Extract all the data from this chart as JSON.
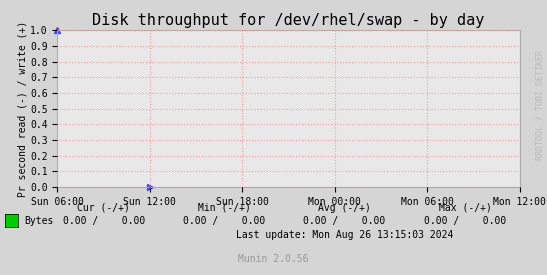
{
  "title": "Disk throughput for /dev/rhel/swap - by day",
  "ylabel": "Pr second read (-) / write (+)",
  "background_color": "#d5d5d5",
  "plot_bg_color": "#e8e8e8",
  "grid_color": "#ff9999",
  "ylim": [
    0.0,
    1.0
  ],
  "yticks": [
    0.0,
    0.1,
    0.2,
    0.3,
    0.4,
    0.5,
    0.6,
    0.7,
    0.8,
    0.9,
    1.0
  ],
  "xtick_labels": [
    "Sun 06:00",
    "Sun 12:00",
    "Sun 18:00",
    "Mon 00:00",
    "Mon 06:00",
    "Mon 12:00"
  ],
  "legend_label": "Bytes",
  "legend_color": "#00cc00",
  "cur_label": "Cur (-/+)",
  "cur_val": "0.00 /    0.00",
  "min_label": "Min (-/+)",
  "min_val": "0.00 /    0.00",
  "avg_label": "Avg (-/+)",
  "avg_val": "0.00 /    0.00",
  "max_label": "Max (-/+)",
  "max_val": "0.00 /    0.00",
  "last_update": "Last update: Mon Aug 26 13:15:03 2024",
  "munin_version": "Munin 2.0.56",
  "watermark": "RRDTOOL / TOBI OETIKER",
  "title_fontsize": 11,
  "axis_label_fontsize": 7,
  "tick_fontsize": 7,
  "legend_fontsize": 7,
  "watermark_fontsize": 6
}
